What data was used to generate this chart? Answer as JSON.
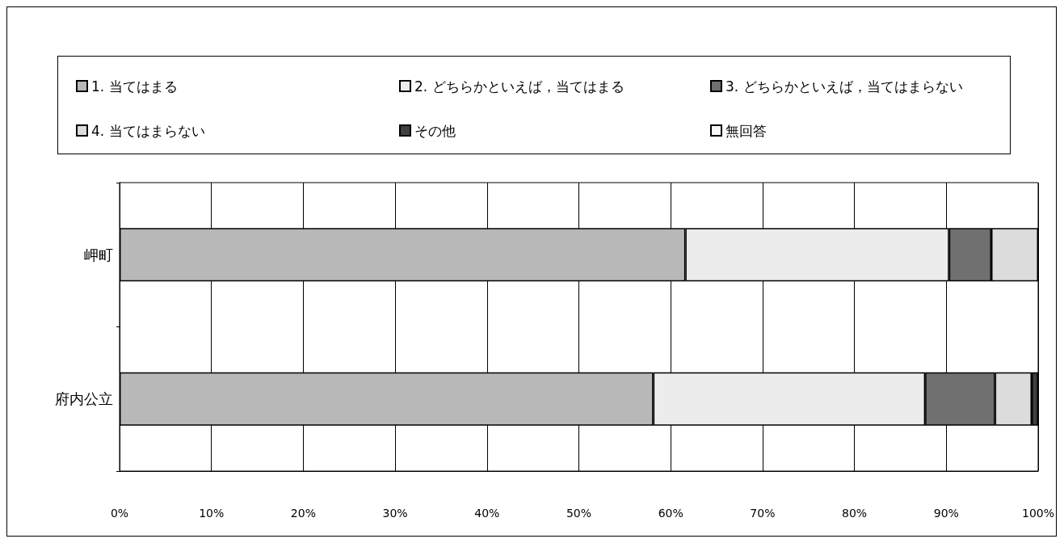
{
  "chart_data": {
    "type": "bar",
    "orientation": "horizontal",
    "stacked": true,
    "categories": [
      "岬町",
      "府内公立"
    ],
    "series": [
      {
        "name": "1. 当てはまる",
        "color": "#b8b8b8",
        "values": [
          61.6,
          58.1
        ]
      },
      {
        "name": "2. どちらかといえば，当てはまる",
        "color": "#ececec",
        "values": [
          28.7,
          29.6
        ]
      },
      {
        "name": "3. どちらかといえば，当てはまらない",
        "color": "#707070",
        "values": [
          4.6,
          7.6
        ]
      },
      {
        "name": "4. 当てはまらない",
        "color": "#dcdcdc",
        "values": [
          5.1,
          4.0
        ]
      },
      {
        "name": "その他",
        "color": "#404040",
        "values": [
          null,
          0.7
        ]
      },
      {
        "name": "無回答",
        "color": "#f8f8f8",
        "values": [
          null,
          null
        ]
      }
    ],
    "xlim": [
      0,
      100
    ],
    "xticks": [
      {
        "value": 0,
        "label": "0%"
      },
      {
        "value": 10,
        "label": "10%"
      },
      {
        "value": 20,
        "label": "20%"
      },
      {
        "value": 30,
        "label": "30%"
      },
      {
        "value": 40,
        "label": "40%"
      },
      {
        "value": 50,
        "label": "50%"
      },
      {
        "value": 60,
        "label": "60%"
      },
      {
        "value": 70,
        "label": "70%"
      },
      {
        "value": 80,
        "label": "80%"
      },
      {
        "value": 90,
        "label": "90%"
      },
      {
        "value": 100,
        "label": "100%"
      }
    ],
    "grid": "x",
    "legend": "top"
  }
}
